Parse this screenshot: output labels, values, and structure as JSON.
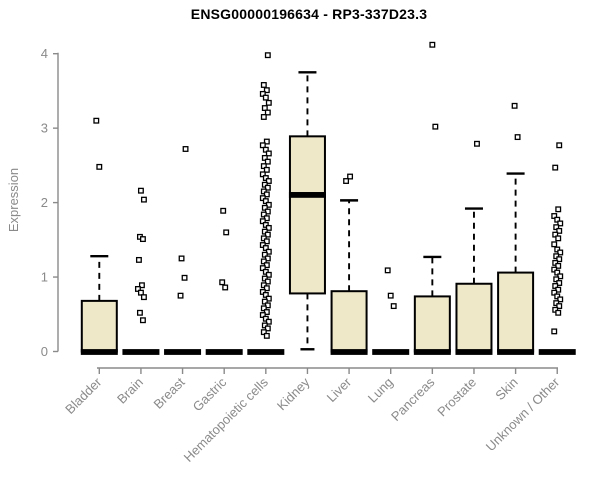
{
  "page": {
    "background": "#ffffff"
  },
  "chart_data": {
    "type": "boxplot",
    "title": "ENSG00000196634 - RP3-337D23.3",
    "ylabel": "Expression",
    "xlabel": "",
    "ylim": [
      0,
      4
    ],
    "yticks": [
      "0",
      "1",
      "2",
      "3",
      "4"
    ],
    "grid": false,
    "legend": "none",
    "colors": {
      "box_fill": "#EEE7C8",
      "box_border": "#000000",
      "median": "#000000",
      "whisker": "#000000",
      "outlier_fill": "#ffffff",
      "outlier_border": "#000000",
      "axis": "#8a8a8a",
      "tick_label": "#8a8a8a",
      "title": "#000000",
      "background": "#ffffff"
    },
    "categories": [
      "Bladder",
      "Brain",
      "Breast",
      "Gastric",
      "Hematopoietic cells",
      "Kidney",
      "Liver",
      "Lung",
      "Pancreas",
      "Prostate",
      "Skin",
      "Unknown / Other"
    ],
    "boxes": [
      {
        "label": "Bladder",
        "q1": 0,
        "median": 0,
        "q3": 0.68,
        "whisker_low": 0,
        "whisker_high": 1.28,
        "outliers": [
          3.1,
          2.48
        ]
      },
      {
        "label": "Brain",
        "q1": 0,
        "median": 0,
        "q3": 0,
        "whisker_low": 0,
        "whisker_high": 0,
        "outliers": [
          2.16,
          2.04,
          1.54,
          1.51,
          1.23,
          0.89,
          0.84,
          0.79,
          0.73,
          0.52,
          0.42
        ]
      },
      {
        "label": "Breast",
        "q1": 0,
        "median": 0,
        "q3": 0,
        "whisker_low": 0,
        "whisker_high": 0,
        "outliers": [
          2.72,
          1.25,
          0.99,
          0.75
        ]
      },
      {
        "label": "Gastric",
        "q1": 0,
        "median": 0,
        "q3": 0,
        "whisker_low": 0,
        "whisker_high": 0,
        "outliers": [
          1.89,
          1.6,
          0.93,
          0.86
        ]
      },
      {
        "label": "Hematopoietic cells",
        "q1": 0,
        "median": 0,
        "q3": 0,
        "whisker_low": 0,
        "whisker_high": 0,
        "outliers": [
          3.98,
          3.58,
          3.51,
          3.46,
          3.41,
          3.34,
          3.27,
          3.21,
          3.15,
          2.82,
          2.77,
          2.71,
          2.66,
          2.6,
          2.55,
          2.49,
          2.44,
          2.38,
          2.33,
          2.29,
          2.24,
          2.2,
          2.15,
          2.11,
          2.06,
          2.02,
          1.97,
          1.93,
          1.88,
          1.84,
          1.79,
          1.75,
          1.7,
          1.66,
          1.61,
          1.57,
          1.52,
          1.48,
          1.43,
          1.39,
          1.34,
          1.3,
          1.25,
          1.21,
          1.16,
          1.12,
          1.07,
          1.03,
          0.98,
          0.94,
          0.89,
          0.85,
          0.8,
          0.76,
          0.71,
          0.67,
          0.62,
          0.58,
          0.53,
          0.49,
          0.44,
          0.4,
          0.35,
          0.31,
          0.26,
          0.21
        ]
      },
      {
        "label": "Kidney",
        "q1": 0.78,
        "median": 2.11,
        "q3": 2.89,
        "whisker_low": 0.03,
        "whisker_high": 3.75,
        "outliers": []
      },
      {
        "label": "Liver",
        "q1": 0,
        "median": 0,
        "q3": 0.81,
        "whisker_low": 0,
        "whisker_high": 2.03,
        "outliers": [
          2.35,
          2.29
        ]
      },
      {
        "label": "Lung",
        "q1": 0,
        "median": 0,
        "q3": 0,
        "whisker_low": 0,
        "whisker_high": 0,
        "outliers": [
          1.09,
          0.75,
          0.61
        ]
      },
      {
        "label": "Pancreas",
        "q1": 0,
        "median": 0,
        "q3": 0.74,
        "whisker_low": 0,
        "whisker_high": 1.27,
        "outliers": [
          4.12,
          3.02
        ]
      },
      {
        "label": "Prostate",
        "q1": 0,
        "median": 0,
        "q3": 0.91,
        "whisker_low": 0,
        "whisker_high": 1.92,
        "outliers": [
          2.79
        ]
      },
      {
        "label": "Skin",
        "q1": 0,
        "median": 0,
        "q3": 1.06,
        "whisker_low": 0,
        "whisker_high": 2.39,
        "outliers": [
          3.3,
          2.88
        ]
      },
      {
        "label": "Unknown / Other",
        "q1": 0,
        "median": 0,
        "q3": 0,
        "whisker_low": 0,
        "whisker_high": 0,
        "outliers": [
          2.77,
          2.47,
          1.91,
          1.82,
          1.77,
          1.72,
          1.67,
          1.62,
          1.57,
          1.52,
          1.44,
          1.37,
          1.33,
          1.28,
          1.24,
          1.19,
          1.15,
          1.1,
          1.06,
          1.01,
          0.97,
          0.92,
          0.88,
          0.83,
          0.79,
          0.74,
          0.7,
          0.65,
          0.61,
          0.56,
          0.52,
          0.27
        ]
      }
    ]
  }
}
